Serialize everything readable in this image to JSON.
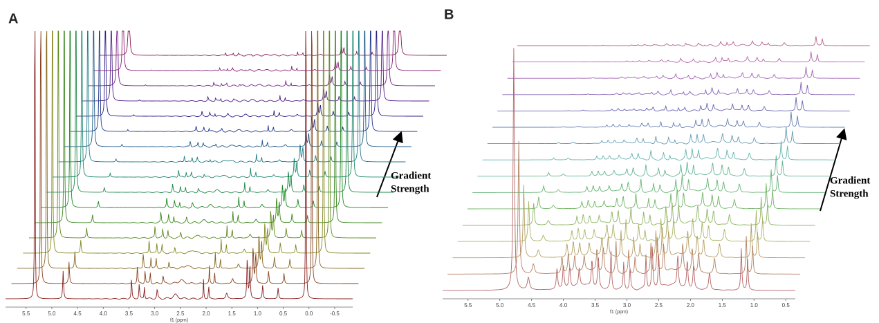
{
  "chart_data": [
    {
      "type": "stacked-spectra",
      "label": "A",
      "x_label": "f1 (ppm)",
      "xlim": [
        5.9,
        -0.85
      ],
      "xticks": [
        5.5,
        {
          "value": 5,
          "label": "5.0"
        },
        4.5,
        {
          "value": 4,
          "label": "4.0"
        },
        3.5,
        {
          "value": 3,
          "label": "3.0"
        },
        2.5,
        {
          "value": 2,
          "label": "2.0"
        },
        1.5,
        {
          "value": 1,
          "label": "1.0"
        },
        0.5,
        {
          "value": 0,
          "label": "0.0"
        },
        -0.5
      ],
      "annotation": [
        "Gradient",
        "Strength"
      ]
    },
    {
      "type": "stacked-spectra",
      "label": "B",
      "x_label": "f1 (ppm)",
      "xlim": [
        5.9,
        0.35
      ],
      "xticks": [
        5.5,
        {
          "value": 5,
          "label": "5.0"
        },
        4.5,
        {
          "value": 4,
          "label": "4.0"
        },
        3.5,
        {
          "value": 3,
          "label": "3.0"
        },
        2.5,
        {
          "value": 2,
          "label": "2.0"
        },
        1.5,
        {
          "value": 1,
          "label": "1.0"
        },
        0.5
      ],
      "annotation": [
        "Gradient",
        "Strength"
      ]
    }
  ]
}
